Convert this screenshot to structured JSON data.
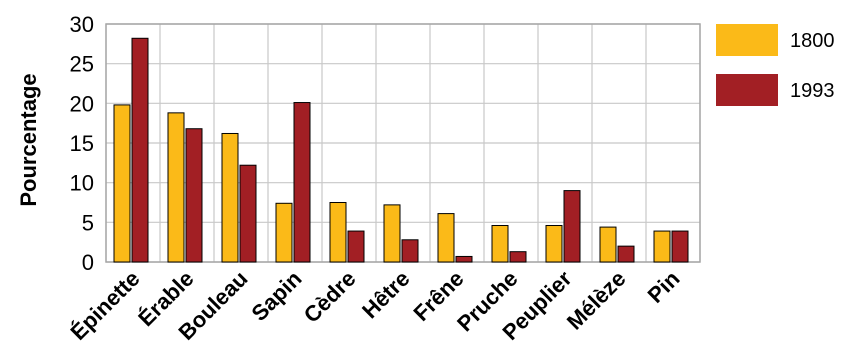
{
  "chart_data": {
    "type": "bar",
    "title": "",
    "xlabel": "",
    "ylabel": "Pourcentage",
    "ylim": [
      0,
      30
    ],
    "yticks": [
      0,
      5,
      10,
      15,
      20,
      25,
      30
    ],
    "grid": true,
    "legend_position": "right",
    "categories": [
      "Épinette",
      "Érable",
      "Bouleau",
      "Sapin",
      "Cèdre",
      "Hêtre",
      "Frêne",
      "Pruche",
      "Peuplier",
      "Mélèze",
      "Pin"
    ],
    "series": [
      {
        "name": "1800",
        "color": "#FBBA18",
        "values": [
          19.8,
          18.8,
          16.2,
          7.4,
          7.5,
          7.2,
          6.1,
          4.6,
          4.6,
          4.4,
          3.9
        ]
      },
      {
        "name": "1993",
        "color": "#A21F24",
        "values": [
          28.2,
          16.8,
          12.2,
          20.1,
          3.9,
          2.8,
          0.7,
          1.3,
          9.0,
          2.0,
          3.9
        ]
      }
    ]
  }
}
